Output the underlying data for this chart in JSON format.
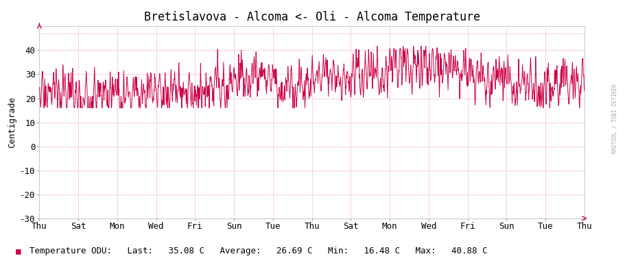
{
  "title": "Bretislavova - Alcoma <- Oli - Alcoma Temperature",
  "ylabel": "Centigrade",
  "ylim": [
    -30,
    50
  ],
  "yticks": [
    -30,
    -20,
    -10,
    0,
    10,
    20,
    30,
    40
  ],
  "line_color": "#CC0044",
  "bg_color": "#ffffff",
  "grid_color": "#ffb0b0",
  "x_labels": [
    "Thu",
    "Sat",
    "Mon",
    "Wed",
    "Fri",
    "Sun",
    "Tue",
    "Thu",
    "Sat",
    "Mon",
    "Wed",
    "Fri",
    "Sun",
    "Tue",
    "Thu"
  ],
  "legend_label": "Temperature ODU:",
  "last": "35.08",
  "average": "26.69",
  "min": "16.48",
  "max": "40.88",
  "watermark": "RRDTOOL / TOBI OETIKER",
  "title_fontsize": 12,
  "axis_fontsize": 9,
  "legend_fontsize": 9
}
